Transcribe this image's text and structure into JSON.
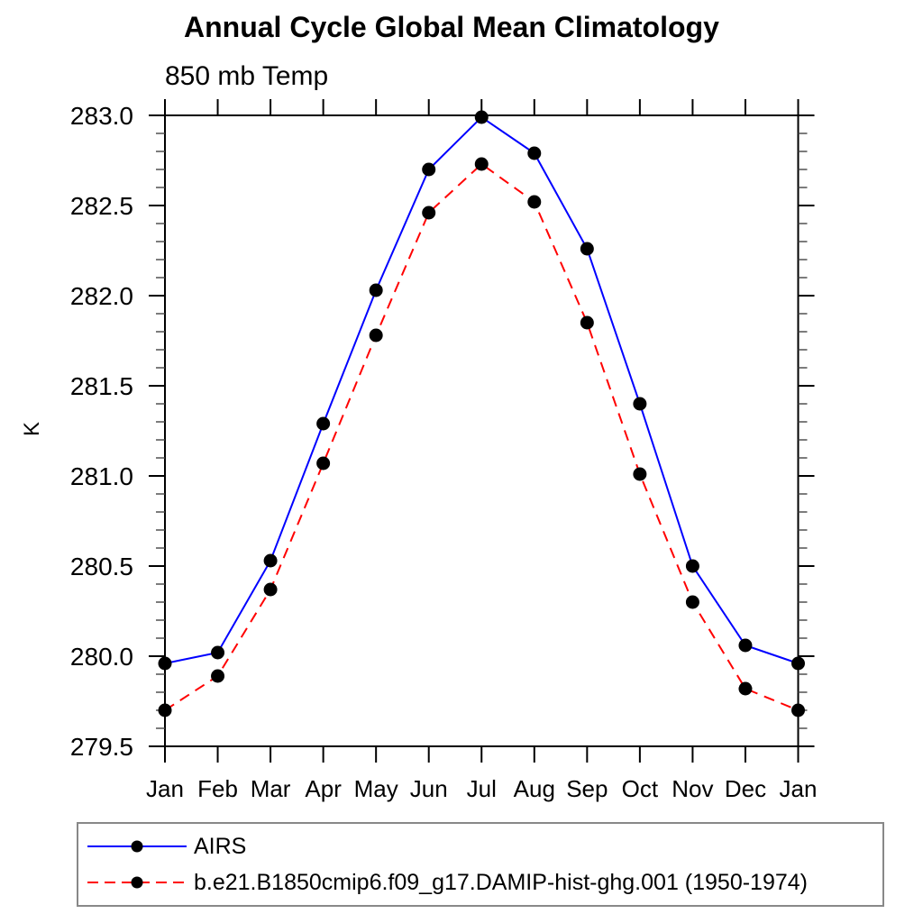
{
  "title": "Annual Cycle Global Mean Climatology",
  "subtitle": "850 mb Temp",
  "y_axis_label": "K",
  "chart_data": {
    "type": "line",
    "categories": [
      "Jan",
      "Feb",
      "Mar",
      "Apr",
      "May",
      "Jun",
      "Jul",
      "Aug",
      "Sep",
      "Oct",
      "Nov",
      "Dec",
      "Jan"
    ],
    "series": [
      {
        "name": "AIRS",
        "line_color": "#0000ff",
        "line_style": "solid",
        "marker": "filled-circle",
        "marker_color": "#000000",
        "values": [
          279.96,
          280.02,
          280.53,
          281.29,
          282.03,
          282.7,
          282.99,
          282.79,
          282.26,
          281.4,
          280.5,
          280.06,
          279.96
        ]
      },
      {
        "name": "b.e21.B1850cmip6.f09_g17.DAMIP-hist-ghg.001 (1950-1974)",
        "line_color": "#ff0000",
        "line_style": "dashed",
        "marker": "filled-circle",
        "marker_color": "#000000",
        "values": [
          279.7,
          279.89,
          280.37,
          281.07,
          281.78,
          282.46,
          282.73,
          282.52,
          281.85,
          281.01,
          280.3,
          279.82,
          279.7
        ]
      }
    ],
    "ylim": [
      279.5,
      283.0
    ],
    "ytick_labels": [
      "279.5",
      "280.0",
      "280.5",
      "281.0",
      "281.5",
      "282.0",
      "282.5",
      "283.0"
    ],
    "ytick_interval": 0.5,
    "yminor_interval": 0.1,
    "grid": false,
    "frame_color": "#000000",
    "legend_position": "below-plot-left"
  }
}
